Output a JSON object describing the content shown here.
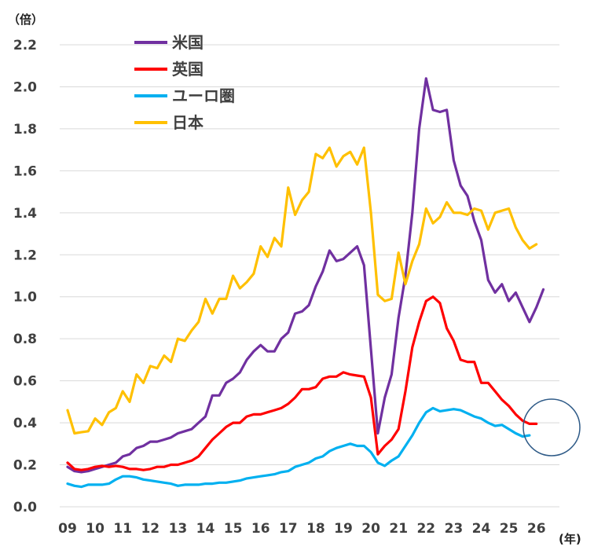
{
  "chart_data": {
    "type": "line",
    "yunit": "（倍）",
    "xunit": "(年)",
    "ylim": [
      0,
      2.2
    ],
    "yticks": [
      "0.0",
      "0.2",
      "0.4",
      "0.6",
      "0.8",
      "1.0",
      "1.2",
      "1.4",
      "1.6",
      "1.8",
      "2.0",
      "2.2"
    ],
    "xticks": [
      "09",
      "10",
      "11",
      "12",
      "13",
      "14",
      "15",
      "16",
      "17",
      "18",
      "19",
      "20",
      "21",
      "22",
      "23",
      "24",
      "25",
      "26"
    ],
    "grid": true,
    "legend_position": "top-left",
    "annotation": "circle around 26",
    "series": [
      {
        "name": "米国",
        "color": "#7030A0",
        "points": [
          [
            2009.0,
            0.19
          ],
          [
            2009.25,
            0.17
          ],
          [
            2009.5,
            0.165
          ],
          [
            2009.75,
            0.17
          ],
          [
            2010.0,
            0.18
          ],
          [
            2010.25,
            0.19
          ],
          [
            2010.5,
            0.2
          ],
          [
            2010.75,
            0.21
          ],
          [
            2011.0,
            0.24
          ],
          [
            2011.25,
            0.25
          ],
          [
            2011.5,
            0.28
          ],
          [
            2011.75,
            0.29
          ],
          [
            2012.0,
            0.31
          ],
          [
            2012.25,
            0.31
          ],
          [
            2012.5,
            0.32
          ],
          [
            2012.75,
            0.33
          ],
          [
            2013.0,
            0.35
          ],
          [
            2013.25,
            0.36
          ],
          [
            2013.5,
            0.37
          ],
          [
            2013.75,
            0.4
          ],
          [
            2014.0,
            0.43
          ],
          [
            2014.25,
            0.53
          ],
          [
            2014.5,
            0.53
          ],
          [
            2014.75,
            0.59
          ],
          [
            2015.0,
            0.61
          ],
          [
            2015.25,
            0.64
          ],
          [
            2015.5,
            0.7
          ],
          [
            2015.75,
            0.74
          ],
          [
            2016.0,
            0.77
          ],
          [
            2016.25,
            0.74
          ],
          [
            2016.5,
            0.74
          ],
          [
            2016.75,
            0.8
          ],
          [
            2017.0,
            0.83
          ],
          [
            2017.25,
            0.92
          ],
          [
            2017.5,
            0.93
          ],
          [
            2017.75,
            0.96
          ],
          [
            2018.0,
            1.05
          ],
          [
            2018.25,
            1.12
          ],
          [
            2018.5,
            1.22
          ],
          [
            2018.75,
            1.17
          ],
          [
            2019.0,
            1.18
          ],
          [
            2019.25,
            1.21
          ],
          [
            2019.5,
            1.24
          ],
          [
            2019.75,
            1.15
          ],
          [
            2020.0,
            0.75
          ],
          [
            2020.25,
            0.35
          ],
          [
            2020.5,
            0.52
          ],
          [
            2020.75,
            0.63
          ],
          [
            2021.0,
            0.9
          ],
          [
            2021.25,
            1.1
          ],
          [
            2021.5,
            1.4
          ],
          [
            2021.75,
            1.8
          ],
          [
            2022.0,
            2.04
          ],
          [
            2022.25,
            1.89
          ],
          [
            2022.5,
            1.88
          ],
          [
            2022.75,
            1.89
          ],
          [
            2023.0,
            1.65
          ],
          [
            2023.25,
            1.53
          ],
          [
            2023.5,
            1.48
          ],
          [
            2023.75,
            1.36
          ],
          [
            2024.0,
            1.27
          ],
          [
            2024.25,
            1.08
          ],
          [
            2024.5,
            1.02
          ],
          [
            2024.75,
            1.06
          ],
          [
            2025.0,
            0.98
          ],
          [
            2025.25,
            1.02
          ],
          [
            2025.5,
            0.95
          ],
          [
            2025.75,
            0.88
          ],
          [
            2026.0,
            0.95
          ],
          [
            2026.25,
            1.035
          ]
        ]
      },
      {
        "name": "英国",
        "color": "#FF0000",
        "points": [
          [
            2009.0,
            0.21
          ],
          [
            2009.25,
            0.18
          ],
          [
            2009.5,
            0.175
          ],
          [
            2009.75,
            0.18
          ],
          [
            2010.0,
            0.19
          ],
          [
            2010.25,
            0.195
          ],
          [
            2010.5,
            0.19
          ],
          [
            2010.75,
            0.195
          ],
          [
            2011.0,
            0.19
          ],
          [
            2011.25,
            0.18
          ],
          [
            2011.5,
            0.18
          ],
          [
            2011.75,
            0.175
          ],
          [
            2012.0,
            0.18
          ],
          [
            2012.25,
            0.19
          ],
          [
            2012.5,
            0.19
          ],
          [
            2012.75,
            0.2
          ],
          [
            2013.0,
            0.2
          ],
          [
            2013.25,
            0.21
          ],
          [
            2013.5,
            0.22
          ],
          [
            2013.75,
            0.24
          ],
          [
            2014.0,
            0.28
          ],
          [
            2014.25,
            0.32
          ],
          [
            2014.5,
            0.35
          ],
          [
            2014.75,
            0.38
          ],
          [
            2015.0,
            0.4
          ],
          [
            2015.25,
            0.4
          ],
          [
            2015.5,
            0.43
          ],
          [
            2015.75,
            0.44
          ],
          [
            2016.0,
            0.44
          ],
          [
            2016.25,
            0.45
          ],
          [
            2016.5,
            0.46
          ],
          [
            2016.75,
            0.47
          ],
          [
            2017.0,
            0.49
          ],
          [
            2017.25,
            0.52
          ],
          [
            2017.5,
            0.56
          ],
          [
            2017.75,
            0.56
          ],
          [
            2018.0,
            0.57
          ],
          [
            2018.25,
            0.61
          ],
          [
            2018.5,
            0.62
          ],
          [
            2018.75,
            0.62
          ],
          [
            2019.0,
            0.64
          ],
          [
            2019.25,
            0.63
          ],
          [
            2019.5,
            0.625
          ],
          [
            2019.75,
            0.62
          ],
          [
            2020.0,
            0.52
          ],
          [
            2020.25,
            0.25
          ],
          [
            2020.5,
            0.29
          ],
          [
            2020.75,
            0.32
          ],
          [
            2021.0,
            0.37
          ],
          [
            2021.25,
            0.55
          ],
          [
            2021.5,
            0.76
          ],
          [
            2021.75,
            0.88
          ],
          [
            2022.0,
            0.98
          ],
          [
            2022.25,
            1.0
          ],
          [
            2022.5,
            0.97
          ],
          [
            2022.75,
            0.85
          ],
          [
            2023.0,
            0.79
          ],
          [
            2023.25,
            0.7
          ],
          [
            2023.5,
            0.69
          ],
          [
            2023.75,
            0.69
          ],
          [
            2024.0,
            0.59
          ],
          [
            2024.25,
            0.59
          ],
          [
            2024.5,
            0.55
          ],
          [
            2024.75,
            0.51
          ],
          [
            2025.0,
            0.48
          ],
          [
            2025.25,
            0.44
          ],
          [
            2025.5,
            0.41
          ],
          [
            2025.75,
            0.395
          ],
          [
            2026.0,
            0.395
          ]
        ]
      },
      {
        "name": "ユーロ圏",
        "color": "#00B0F0",
        "points": [
          [
            2009.0,
            0.11
          ],
          [
            2009.25,
            0.1
          ],
          [
            2009.5,
            0.095
          ],
          [
            2009.75,
            0.105
          ],
          [
            2010.0,
            0.105
          ],
          [
            2010.25,
            0.105
          ],
          [
            2010.5,
            0.11
          ],
          [
            2010.75,
            0.13
          ],
          [
            2011.0,
            0.145
          ],
          [
            2011.25,
            0.145
          ],
          [
            2011.5,
            0.14
          ],
          [
            2011.75,
            0.13
          ],
          [
            2012.0,
            0.125
          ],
          [
            2012.25,
            0.12
          ],
          [
            2012.5,
            0.115
          ],
          [
            2012.75,
            0.11
          ],
          [
            2013.0,
            0.1
          ],
          [
            2013.25,
            0.105
          ],
          [
            2013.5,
            0.105
          ],
          [
            2013.75,
            0.105
          ],
          [
            2014.0,
            0.11
          ],
          [
            2014.25,
            0.11
          ],
          [
            2014.5,
            0.115
          ],
          [
            2014.75,
            0.115
          ],
          [
            2015.0,
            0.12
          ],
          [
            2015.25,
            0.125
          ],
          [
            2015.5,
            0.135
          ],
          [
            2015.75,
            0.14
          ],
          [
            2016.0,
            0.145
          ],
          [
            2016.25,
            0.15
          ],
          [
            2016.5,
            0.155
          ],
          [
            2016.75,
            0.165
          ],
          [
            2017.0,
            0.17
          ],
          [
            2017.25,
            0.19
          ],
          [
            2017.5,
            0.2
          ],
          [
            2017.75,
            0.21
          ],
          [
            2018.0,
            0.23
          ],
          [
            2018.25,
            0.24
          ],
          [
            2018.5,
            0.265
          ],
          [
            2018.75,
            0.28
          ],
          [
            2019.0,
            0.29
          ],
          [
            2019.25,
            0.3
          ],
          [
            2019.5,
            0.29
          ],
          [
            2019.75,
            0.29
          ],
          [
            2020.0,
            0.26
          ],
          [
            2020.25,
            0.21
          ],
          [
            2020.5,
            0.195
          ],
          [
            2020.75,
            0.22
          ],
          [
            2021.0,
            0.24
          ],
          [
            2021.25,
            0.29
          ],
          [
            2021.5,
            0.34
          ],
          [
            2021.75,
            0.4
          ],
          [
            2022.0,
            0.45
          ],
          [
            2022.25,
            0.47
          ],
          [
            2022.5,
            0.455
          ],
          [
            2022.75,
            0.46
          ],
          [
            2023.0,
            0.465
          ],
          [
            2023.25,
            0.46
          ],
          [
            2023.5,
            0.445
          ],
          [
            2023.75,
            0.43
          ],
          [
            2024.0,
            0.42
          ],
          [
            2024.25,
            0.4
          ],
          [
            2024.5,
            0.385
          ],
          [
            2024.75,
            0.39
          ],
          [
            2025.0,
            0.37
          ],
          [
            2025.25,
            0.35
          ],
          [
            2025.5,
            0.335
          ],
          [
            2025.75,
            0.34
          ]
        ]
      },
      {
        "name": "日本",
        "color": "#FFC000",
        "points": [
          [
            2009.0,
            0.46
          ],
          [
            2009.25,
            0.35
          ],
          [
            2009.5,
            0.355
          ],
          [
            2009.75,
            0.36
          ],
          [
            2010.0,
            0.42
          ],
          [
            2010.25,
            0.39
          ],
          [
            2010.5,
            0.45
          ],
          [
            2010.75,
            0.47
          ],
          [
            2011.0,
            0.55
          ],
          [
            2011.25,
            0.5
          ],
          [
            2011.5,
            0.63
          ],
          [
            2011.75,
            0.59
          ],
          [
            2012.0,
            0.67
          ],
          [
            2012.25,
            0.66
          ],
          [
            2012.5,
            0.72
          ],
          [
            2012.75,
            0.69
          ],
          [
            2013.0,
            0.8
          ],
          [
            2013.25,
            0.79
          ],
          [
            2013.5,
            0.84
          ],
          [
            2013.75,
            0.88
          ],
          [
            2014.0,
            0.99
          ],
          [
            2014.25,
            0.92
          ],
          [
            2014.5,
            0.99
          ],
          [
            2014.75,
            0.99
          ],
          [
            2015.0,
            1.1
          ],
          [
            2015.25,
            1.04
          ],
          [
            2015.5,
            1.07
          ],
          [
            2015.75,
            1.11
          ],
          [
            2016.0,
            1.24
          ],
          [
            2016.25,
            1.19
          ],
          [
            2016.5,
            1.28
          ],
          [
            2016.75,
            1.24
          ],
          [
            2017.0,
            1.52
          ],
          [
            2017.25,
            1.39
          ],
          [
            2017.5,
            1.46
          ],
          [
            2017.75,
            1.5
          ],
          [
            2018.0,
            1.68
          ],
          [
            2018.25,
            1.66
          ],
          [
            2018.5,
            1.71
          ],
          [
            2018.75,
            1.62
          ],
          [
            2019.0,
            1.67
          ],
          [
            2019.25,
            1.69
          ],
          [
            2019.5,
            1.63
          ],
          [
            2019.75,
            1.71
          ],
          [
            2020.0,
            1.4
          ],
          [
            2020.25,
            1.01
          ],
          [
            2020.5,
            0.98
          ],
          [
            2020.75,
            0.99
          ],
          [
            2021.0,
            1.21
          ],
          [
            2021.25,
            1.06
          ],
          [
            2021.5,
            1.17
          ],
          [
            2021.75,
            1.25
          ],
          [
            2022.0,
            1.42
          ],
          [
            2022.25,
            1.35
          ],
          [
            2022.5,
            1.38
          ],
          [
            2022.75,
            1.45
          ],
          [
            2023.0,
            1.4
          ],
          [
            2023.25,
            1.4
          ],
          [
            2023.5,
            1.39
          ],
          [
            2023.75,
            1.42
          ],
          [
            2024.0,
            1.41
          ],
          [
            2024.25,
            1.32
          ],
          [
            2024.5,
            1.4
          ],
          [
            2024.75,
            1.41
          ],
          [
            2025.0,
            1.42
          ],
          [
            2025.25,
            1.33
          ],
          [
            2025.5,
            1.27
          ],
          [
            2025.75,
            1.23
          ],
          [
            2026.0,
            1.25
          ]
        ]
      }
    ]
  }
}
